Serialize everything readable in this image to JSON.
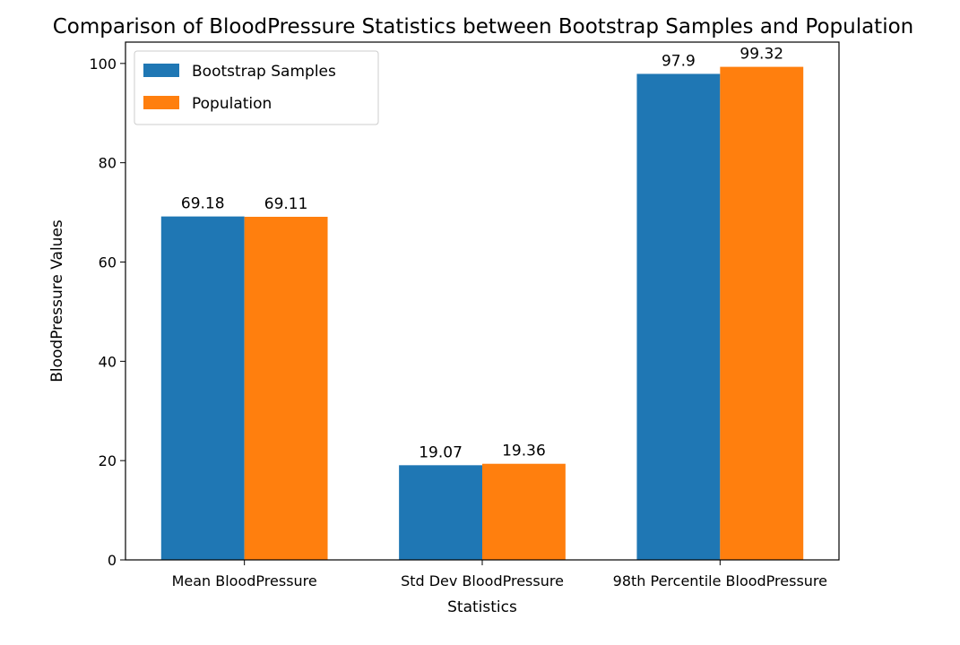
{
  "chart_data": {
    "type": "bar",
    "title": "Comparison of BloodPressure Statistics between Bootstrap Samples and Population",
    "xlabel": "Statistics",
    "ylabel": "BloodPressure Values",
    "categories": [
      "Mean BloodPressure",
      "Std Dev BloodPressure",
      "98th Percentile BloodPressure"
    ],
    "series": [
      {
        "name": "Bootstrap Samples",
        "values": [
          69.18,
          19.07,
          97.9
        ],
        "labels": [
          "69.18",
          "19.07",
          "97.9"
        ],
        "color": "#1f77b4"
      },
      {
        "name": "Population",
        "values": [
          69.11,
          19.36,
          99.32
        ],
        "labels": [
          "69.11",
          "19.36",
          "99.32"
        ],
        "color": "#ff7f0e"
      }
    ],
    "ylim": [
      0,
      104.3
    ],
    "yticks": [
      0,
      20,
      40,
      60,
      80,
      100
    ],
    "ytick_labels": [
      "0",
      "20",
      "40",
      "60",
      "80",
      "100"
    ],
    "grid": false,
    "legend_position": "top-left"
  }
}
